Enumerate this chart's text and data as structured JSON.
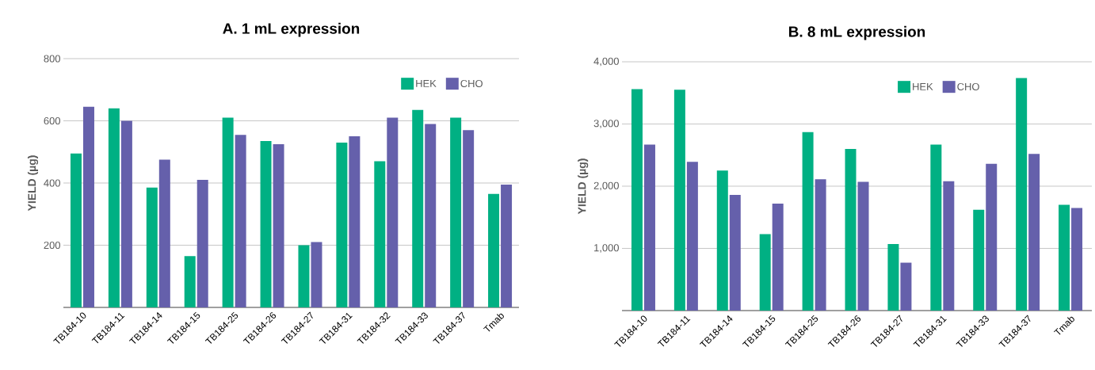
{
  "chart_data": [
    {
      "type": "bar",
      "title": "A. 1 mL expression",
      "ylabel": "YIELD (µg)",
      "categories": [
        "TB184-10",
        "TB184-11",
        "TB184-14",
        "TB184-15",
        "TB184-25",
        "TB184-26",
        "TB184-27",
        "TB184-31",
        "TB184-32",
        "TB184-33",
        "TB184-37",
        "Tmab"
      ],
      "series": [
        {
          "name": "HEK",
          "color": "#00b083",
          "values": [
            495,
            640,
            385,
            165,
            610,
            535,
            200,
            530,
            470,
            635,
            610,
            365
          ]
        },
        {
          "name": "CHO",
          "color": "#6560ab",
          "values": [
            645,
            600,
            475,
            410,
            555,
            525,
            210,
            550,
            610,
            590,
            570,
            395
          ]
        }
      ],
      "ylim": [
        0,
        800
      ],
      "yticks": [
        200,
        400,
        600,
        800
      ],
      "grid": "y",
      "legend": "top right"
    },
    {
      "type": "bar",
      "title": "B. 8 mL expression",
      "ylabel": "YIELD (µg)",
      "categories": [
        "TB184-10",
        "TB184-11",
        "TB184-14",
        "TB184-15",
        "TB184-25",
        "TB184-26",
        "TB184-27",
        "TB184-31",
        "TB184-33",
        "TB184-37",
        "Tmab"
      ],
      "series": [
        {
          "name": "HEK",
          "color": "#00b083",
          "values": [
            3560,
            3550,
            2250,
            1230,
            2870,
            2600,
            1070,
            2670,
            1620,
            3740,
            1700
          ]
        },
        {
          "name": "CHO",
          "color": "#6560ab",
          "values": [
            2670,
            2390,
            1860,
            1720,
            2110,
            2070,
            770,
            2080,
            2360,
            2520,
            1650
          ]
        }
      ],
      "ylim": [
        0,
        4000
      ],
      "yticks": [
        {
          "value": 1000,
          "label": "1,000"
        },
        {
          "value": 2000,
          "label": "2,000"
        },
        {
          "value": 3000,
          "label": "3,000"
        },
        {
          "value": 4000,
          "label": "4,000"
        }
      ],
      "grid": "y",
      "legend": "top right"
    }
  ]
}
